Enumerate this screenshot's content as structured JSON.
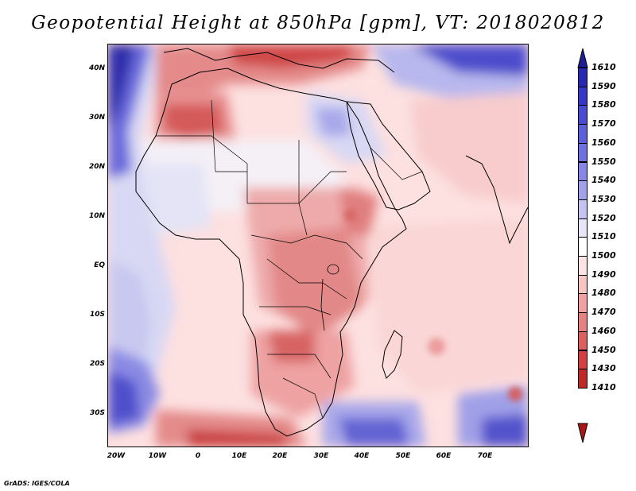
{
  "title": "Geopotential Height at 850hPa [gpm], VT: 2018020812",
  "credit": "GrADS: IGES/COLA",
  "lat_labels": [
    "40N",
    "30N",
    "20N",
    "10N",
    "EQ",
    "10S",
    "20S",
    "30S"
  ],
  "lon_labels": [
    "20W",
    "10W",
    "0",
    "10E",
    "20E",
    "30E",
    "40E",
    "50E",
    "60E",
    "70E"
  ],
  "colorbar": {
    "levels": [
      "1610",
      "1590",
      "1580",
      "1570",
      "1560",
      "1550",
      "1540",
      "1530",
      "1520",
      "1510",
      "1500",
      "1490",
      "1480",
      "1470",
      "1460",
      "1450",
      "1430",
      "1410"
    ],
    "colors": [
      "#1e1e96",
      "#2828b4",
      "#3838c8",
      "#4a4ad2",
      "#5e5ed8",
      "#7070de",
      "#8686e4",
      "#a2a2ea",
      "#c4c4f2",
      "#e6e6f8",
      "#ffffff",
      "#fce4e4",
      "#f7c4c4",
      "#f0a2a2",
      "#e58282",
      "#dc6060",
      "#d24040",
      "#c02828",
      "#a81616"
    ]
  },
  "map": {
    "region": "Africa and surrounding seas",
    "lon_range": [
      -23,
      80
    ],
    "lat_range": [
      -37,
      45
    ]
  }
}
